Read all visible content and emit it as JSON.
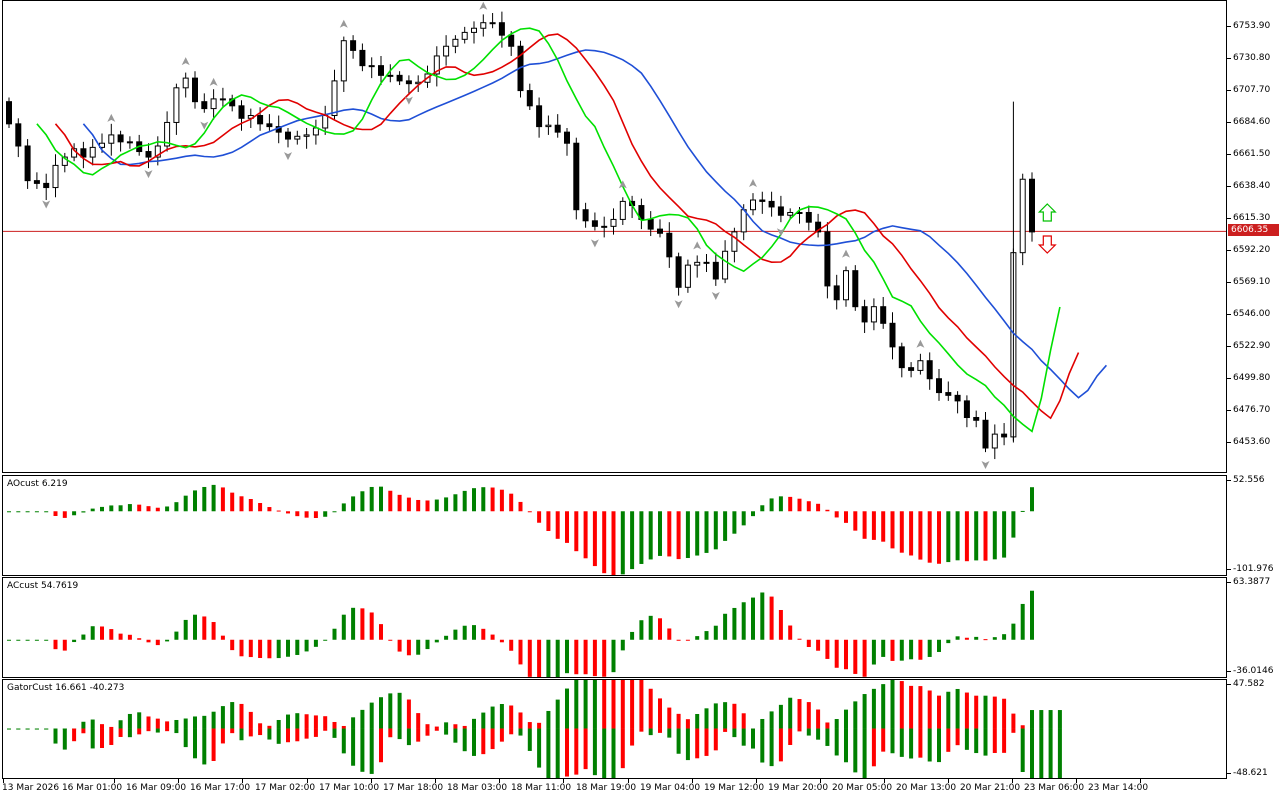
{
  "colors": {
    "bull_bar": "#008000",
    "bear_bar": "#ff0000",
    "ma_fast": "#00e000",
    "ma_mid": "#e00000",
    "ma_slow": "#1f4fd6",
    "price_line": "#cc1f1f"
  },
  "main": {
    "price_ticks": [
      "6753.90",
      "6730.80",
      "6707.70",
      "6684.60",
      "6661.50",
      "6638.40",
      "6615.30",
      "6592.20",
      "6569.10",
      "6546.00",
      "6522.90",
      "6499.80",
      "6476.70",
      "6453.60"
    ],
    "current_price": "6606.35",
    "arrow_up_icon": "hollow-arrow-up",
    "arrow_down_icon": "hollow-arrow-down"
  },
  "ao": {
    "label": "AOcust 6.219",
    "max": "52.556",
    "min": "-101.976"
  },
  "ac": {
    "label": "ACcust 54.7619",
    "max": "63.3877",
    "min": "-36.0146"
  },
  "gator": {
    "label": "GatorCust 16.661 -40.273",
    "max": "47.582",
    "min": "-48.621"
  },
  "time_axis": [
    "13 Mar 2026",
    "16 Mar 01:00",
    "16 Mar 09:00",
    "16 Mar 17:00",
    "17 Mar 02:00",
    "17 Mar 10:00",
    "17 Mar 18:00",
    "18 Mar 03:00",
    "18 Mar 11:00",
    "18 Mar 19:00",
    "19 Mar 04:00",
    "19 Mar 12:00",
    "19 Mar 20:00",
    "20 Mar 05:00",
    "20 Mar 13:00",
    "20 Mar 21:00",
    "23 Mar 06:00",
    "23 Mar 14:00"
  ],
  "chart_data": [
    {
      "type": "candlestick",
      "title": "",
      "ylim": [
        6441,
        6765
      ],
      "indicators": [
        "green moving average",
        "red moving average",
        "blue moving average",
        "fractal arrows"
      ],
      "closes": [
        6684,
        6668,
        6643,
        6641,
        6638,
        6654,
        6660,
        6666,
        6660,
        6667,
        6670,
        6676,
        6671,
        6671,
        6664,
        6660,
        6668,
        6685,
        6710,
        6717,
        6700,
        6695,
        6702,
        6702,
        6697,
        6688,
        6690,
        6684,
        6682,
        6678,
        6673,
        6675,
        6676,
        6681,
        6690,
        6715,
        6744,
        6737,
        6726,
        6726,
        6719,
        6719,
        6715,
        6713,
        6714,
        6720,
        6733,
        6740,
        6745,
        6750,
        6753,
        6757,
        6757,
        6748,
        6740,
        6708,
        6697,
        6682,
        6683,
        6678,
        6670,
        6622,
        6614,
        6610,
        6610,
        6615,
        6628,
        6625,
        6615,
        6608,
        6605,
        6588,
        6566,
        6582,
        6584,
        6584,
        6572,
        6592,
        6606,
        6622,
        6629,
        6628,
        6624,
        6618,
        6620,
        6620,
        6613,
        6606,
        6567,
        6557,
        6578,
        6552,
        6541,
        6552,
        6540,
        6523,
        6508,
        6506,
        6513,
        6500,
        6490,
        6488,
        6484,
        6472,
        6470,
        6450,
        6460,
        6458,
        6591,
        6644,
        6606
      ],
      "x_first": "13 Mar 2026",
      "x_last": "23 Mar 14:00"
    },
    {
      "type": "bar",
      "title": "AOcust",
      "ylim": [
        -101.976,
        52.556
      ],
      "last_value": 6.219
    },
    {
      "type": "bar",
      "title": "ACcust",
      "ylim": [
        -36.0146,
        63.3877
      ],
      "last_value": 54.7619
    },
    {
      "type": "bar",
      "title": "GatorCust",
      "ylim": [
        -48.621,
        47.582
      ],
      "last_values": [
        16.661,
        -40.273
      ]
    }
  ]
}
